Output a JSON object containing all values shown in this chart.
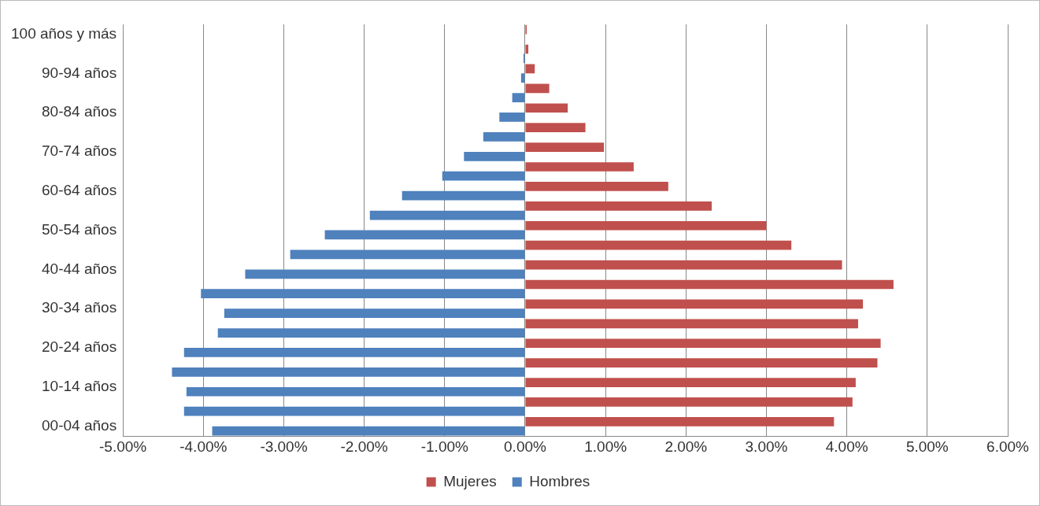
{
  "chart_data": {
    "type": "bar",
    "orientation": "horizontal",
    "categories": [
      "100 años y más",
      null,
      "90-94 años",
      null,
      "80-84 años",
      null,
      "70-74 años",
      null,
      "60-64 años",
      null,
      "50-54 años",
      null,
      "40-44 años",
      null,
      "30-34 años",
      null,
      "20-24 años",
      null,
      "10-14 años",
      null,
      "00-04 años"
    ],
    "series": [
      {
        "name": "Mujeres",
        "color": "#c0504d",
        "values": [
          0.02,
          0.04,
          0.12,
          0.3,
          0.53,
          0.75,
          0.98,
          1.35,
          1.78,
          2.32,
          3.0,
          3.31,
          3.94,
          4.58,
          4.2,
          4.14,
          4.42,
          4.38,
          4.11,
          4.07,
          3.84
        ]
      },
      {
        "name": "Hombres",
        "color": "#4f81bd",
        "values": [
          null,
          -0.02,
          -0.05,
          -0.16,
          -0.32,
          -0.52,
          -0.76,
          -1.03,
          -1.53,
          -1.93,
          -2.49,
          -2.92,
          -3.48,
          -4.03,
          -3.74,
          -3.82,
          -4.24,
          -4.39,
          -4.21,
          -4.24,
          -3.89
        ]
      }
    ],
    "xlim": [
      -5,
      6
    ],
    "xticks": [
      {
        "value": -5,
        "label": "-5.00%"
      },
      {
        "value": -4,
        "label": "-4.00%"
      },
      {
        "value": -3,
        "label": "-3.00%"
      },
      {
        "value": -2,
        "label": "-2.00%"
      },
      {
        "value": -1,
        "label": "-1.00%"
      },
      {
        "value": 0,
        "label": "0.00%"
      },
      {
        "value": 1,
        "label": "1.00%"
      },
      {
        "value": 2,
        "label": "2.00%"
      },
      {
        "value": 3,
        "label": "3.00%"
      },
      {
        "value": 4,
        "label": "4.00%"
      },
      {
        "value": 5,
        "label": "5.00%"
      },
      {
        "value": 6,
        "label": "6.00%"
      }
    ],
    "grid": "x",
    "legend": "bottom"
  }
}
